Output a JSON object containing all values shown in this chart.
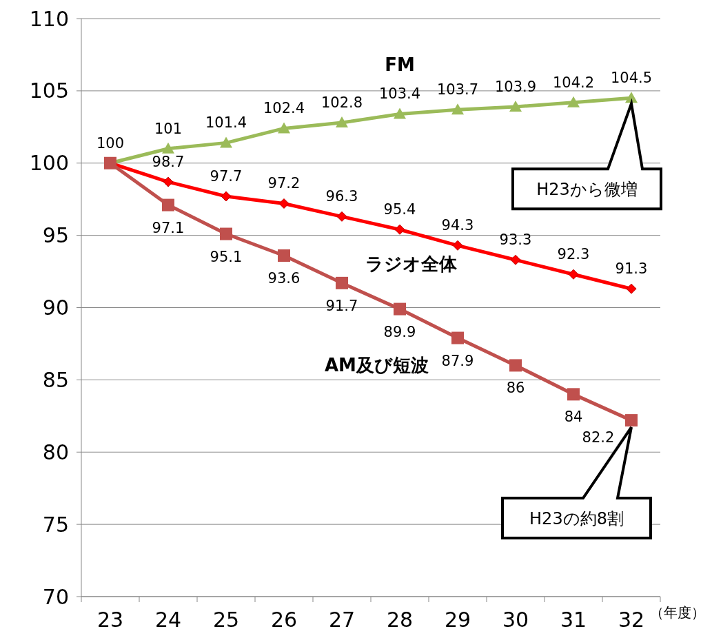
{
  "chart_data": {
    "type": "line",
    "categories": [
      "23",
      "24",
      "25",
      "26",
      "27",
      "28",
      "29",
      "30",
      "31",
      "32"
    ],
    "xlabel": "（年度）",
    "ylim": [
      70,
      110
    ],
    "yticks": [
      70,
      75,
      80,
      85,
      90,
      95,
      100,
      105,
      110
    ],
    "grid": "y",
    "series": [
      {
        "name": "FM",
        "color": "#9bbb59",
        "marker": "triangle",
        "values": [
          100,
          101,
          101.4,
          102.4,
          102.8,
          103.4,
          103.7,
          103.9,
          104.2,
          104.5
        ],
        "value_labels": [
          "100",
          "101",
          "101.4",
          "102.4",
          "102.8",
          "103.4",
          "103.7",
          "103.9",
          "104.2",
          "104.5"
        ]
      },
      {
        "name": "ラジオ全体",
        "color": "#ff0000",
        "marker": "diamond",
        "values": [
          100,
          98.7,
          97.7,
          97.2,
          96.3,
          95.4,
          94.3,
          93.3,
          92.3,
          91.3
        ],
        "value_labels": [
          null,
          "98.7",
          "97.7",
          "97.2",
          "96.3",
          "95.4",
          "94.3",
          "93.3",
          "92.3",
          "91.3"
        ]
      },
      {
        "name": "AM及び短波",
        "color": "#c0504d",
        "marker": "square",
        "values": [
          100,
          97.1,
          95.1,
          93.6,
          91.7,
          89.9,
          87.9,
          86,
          84,
          82.2
        ],
        "value_labels": [
          null,
          "97.1",
          "95.1",
          "93.6",
          "91.7",
          "89.9",
          "87.9",
          "86",
          "84",
          "82.2"
        ]
      }
    ],
    "annotations": [
      "H23から微増",
      "H23の約8割"
    ]
  }
}
